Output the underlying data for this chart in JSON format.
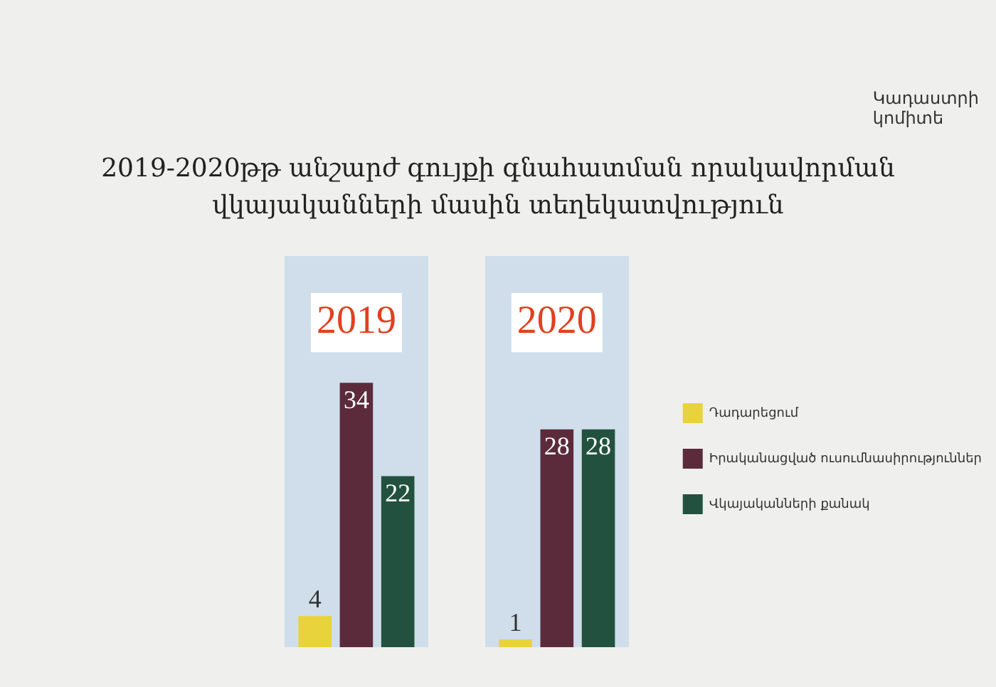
{
  "chart_data": {
    "type": "bar",
    "title": "2019-2020թթ անշարժ գույքի գնահատման որակավորման\nվկայականների մասին տեղեկատվություն",
    "annotations": [
      "Կադաստրի\nկոմիտե"
    ],
    "categories": [
      "2019",
      "2020"
    ],
    "series": [
      {
        "name": "Դադարեցում",
        "color": "#e8d33c",
        "values": [
          4,
          1
        ]
      },
      {
        "name": "Իրականացված ուսումնասիրություններ",
        "color": "#5b2b3c",
        "values": [
          34,
          28
        ]
      },
      {
        "name": "Վկայականների քանակ",
        "color": "#22523f",
        "values": [
          22,
          28
        ]
      }
    ],
    "data_labels": true,
    "legend": "right",
    "grid": false
  }
}
